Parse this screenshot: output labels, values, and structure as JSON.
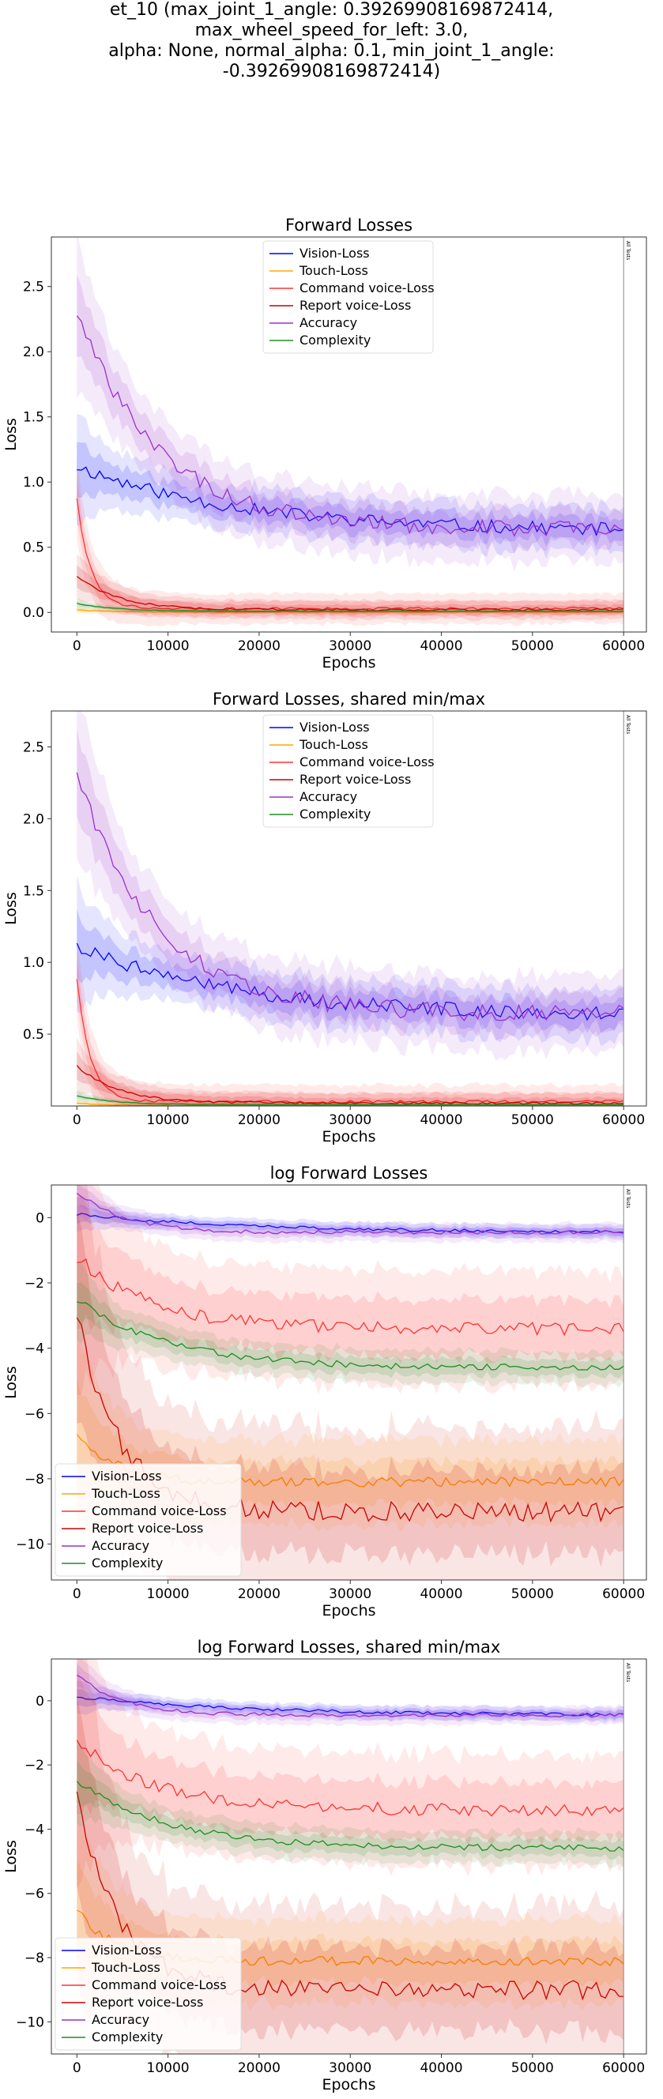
{
  "figure_title": "et_10 (max_joint_1_angle: 0.39269908169872414, max_wheel_speed_for_left: 3.0,\nalpha: None, normal_alpha: 0.1, min_joint_1_angle: -0.39269908169872414)",
  "chart_data": [
    {
      "type": "line",
      "title": "Forward Losses",
      "xlabel": "Epochs",
      "ylabel": "Loss",
      "xlim": [
        -2800,
        62500
      ],
      "ylim": [
        -0.15,
        2.88
      ],
      "xticks": [
        0,
        10000,
        20000,
        30000,
        40000,
        50000,
        60000
      ],
      "yticks": [
        0.0,
        0.5,
        1.0,
        1.5,
        2.0,
        2.5
      ],
      "ytick_labels": [
        "0.0",
        "0.5",
        "1.0",
        "1.5",
        "2.0",
        "2.5"
      ],
      "grid": false,
      "legend": "top-center",
      "vline_label": "All Tests",
      "series": [
        {
          "name": "Vision-Loss",
          "color": "#0000ff",
          "start": 1.12,
          "end": 0.62,
          "decay": 18000,
          "noise": 0.05,
          "band": 0.12
        },
        {
          "name": "Touch-Loss",
          "color": "#ffa500",
          "start": 0.02,
          "end": 0.004,
          "decay": 3000,
          "noise": 0.002,
          "band": 0.01
        },
        {
          "name": "Command voice-Loss",
          "color": "#ff3333",
          "start": 0.88,
          "end": 0.03,
          "decay": 1500,
          "noise": 0.01,
          "band": 0.08
        },
        {
          "name": "Report voice-Loss",
          "color": "#cc0000",
          "start": 0.28,
          "end": 0.02,
          "decay": 4500,
          "noise": 0.008,
          "band": 0.05
        },
        {
          "name": "Accuracy",
          "color": "#9932cc",
          "start": 2.3,
          "end": 0.64,
          "decay": 9000,
          "noise": 0.06,
          "band": 0.18
        },
        {
          "name": "Complexity",
          "color": "#228b22",
          "start": 0.07,
          "end": 0.01,
          "decay": 4000,
          "noise": 0.002,
          "band": 0.01
        }
      ]
    },
    {
      "type": "line",
      "title": "Forward Losses, shared min/max",
      "xlabel": "Epochs",
      "ylabel": "Loss",
      "xlim": [
        -2800,
        62500
      ],
      "ylim": [
        0.0,
        2.75
      ],
      "xticks": [
        0,
        10000,
        20000,
        30000,
        40000,
        50000,
        60000
      ],
      "yticks": [
        0.5,
        1.0,
        1.5,
        2.0,
        2.5
      ],
      "ytick_labels": [
        "0.5",
        "1.0",
        "1.5",
        "2.0",
        "2.5"
      ],
      "grid": false,
      "legend": "top-center",
      "vline_label": "All Tests",
      "series": [
        {
          "name": "Vision-Loss",
          "color": "#0000ff",
          "start": 1.12,
          "end": 0.62,
          "decay": 18000,
          "noise": 0.05,
          "band": 0.12
        },
        {
          "name": "Touch-Loss",
          "color": "#ffa500",
          "start": 0.02,
          "end": 0.004,
          "decay": 3000,
          "noise": 0.002,
          "band": 0.01
        },
        {
          "name": "Command voice-Loss",
          "color": "#ff3333",
          "start": 0.88,
          "end": 0.03,
          "decay": 1500,
          "noise": 0.01,
          "band": 0.08
        },
        {
          "name": "Report voice-Loss",
          "color": "#cc0000",
          "start": 0.28,
          "end": 0.02,
          "decay": 4500,
          "noise": 0.008,
          "band": 0.05
        },
        {
          "name": "Accuracy",
          "color": "#9932cc",
          "start": 2.3,
          "end": 0.64,
          "decay": 9000,
          "noise": 0.06,
          "band": 0.18
        },
        {
          "name": "Complexity",
          "color": "#228b22",
          "start": 0.07,
          "end": 0.01,
          "decay": 4000,
          "noise": 0.002,
          "band": 0.01
        }
      ]
    },
    {
      "type": "line",
      "title": "log Forward Losses",
      "xlabel": "Epochs",
      "ylabel": "Loss",
      "xlim": [
        -2800,
        62500
      ],
      "ylim": [
        -11.1,
        1.0
      ],
      "xticks": [
        0,
        10000,
        20000,
        30000,
        40000,
        50000,
        60000
      ],
      "yticks": [
        0,
        -2,
        -4,
        -6,
        -8,
        -10
      ],
      "ytick_labels": [
        "0",
        "−2",
        "−4",
        "−6",
        "−8",
        "−10"
      ],
      "grid": false,
      "legend": "lower-left",
      "vline_label": "All Tests",
      "series": [
        {
          "name": "Vision-Loss",
          "color": "#0000ff",
          "start": 0.12,
          "end": -0.45,
          "decay": 18000,
          "noise": 0.05,
          "band": 0.15
        },
        {
          "name": "Touch-Loss",
          "color": "#ffa500",
          "start": -6.5,
          "end": -8.1,
          "decay": 4000,
          "noise": 0.15,
          "band": 0.9
        },
        {
          "name": "Command voice-Loss",
          "color": "#ff3333",
          "start": -1.2,
          "end": -3.4,
          "decay": 8000,
          "noise": 0.2,
          "band": 1.2
        },
        {
          "name": "Report voice-Loss",
          "color": "#cc0000",
          "start": -2.8,
          "end": -9.0,
          "decay": 4500,
          "noise": 0.3,
          "band": 1.8
        },
        {
          "name": "Accuracy",
          "color": "#9932cc",
          "start": 0.8,
          "end": -0.45,
          "decay": 5000,
          "noise": 0.06,
          "band": 0.2
        },
        {
          "name": "Complexity",
          "color": "#228b22",
          "start": -2.5,
          "end": -4.6,
          "decay": 10000,
          "noise": 0.1,
          "band": 0.35
        }
      ]
    },
    {
      "type": "line",
      "title": "log Forward Losses, shared min/max",
      "xlabel": "Epochs",
      "ylabel": "Loss",
      "xlim": [
        -2800,
        62500
      ],
      "ylim": [
        -11.0,
        1.3
      ],
      "xticks": [
        0,
        10000,
        20000,
        30000,
        40000,
        50000,
        60000
      ],
      "yticks": [
        0,
        -2,
        -4,
        -6,
        -8,
        -10
      ],
      "ytick_labels": [
        "0",
        "−2",
        "−4",
        "−6",
        "−8",
        "−10"
      ],
      "grid": false,
      "legend": "lower-left",
      "vline_label": "All Tests",
      "series": [
        {
          "name": "Vision-Loss",
          "color": "#0000ff",
          "start": 0.12,
          "end": -0.45,
          "decay": 18000,
          "noise": 0.05,
          "band": 0.15
        },
        {
          "name": "Touch-Loss",
          "color": "#ffa500",
          "start": -6.5,
          "end": -8.1,
          "decay": 4000,
          "noise": 0.15,
          "band": 0.9
        },
        {
          "name": "Command voice-Loss",
          "color": "#ff3333",
          "start": -1.2,
          "end": -3.4,
          "decay": 8000,
          "noise": 0.2,
          "band": 1.2
        },
        {
          "name": "Report voice-Loss",
          "color": "#cc0000",
          "start": -2.8,
          "end": -9.0,
          "decay": 4500,
          "noise": 0.3,
          "band": 1.8
        },
        {
          "name": "Accuracy",
          "color": "#9932cc",
          "start": 0.8,
          "end": -0.45,
          "decay": 5000,
          "noise": 0.06,
          "band": 0.2
        },
        {
          "name": "Complexity",
          "color": "#228b22",
          "start": -2.5,
          "end": -4.6,
          "decay": 10000,
          "noise": 0.1,
          "band": 0.35
        }
      ]
    }
  ]
}
